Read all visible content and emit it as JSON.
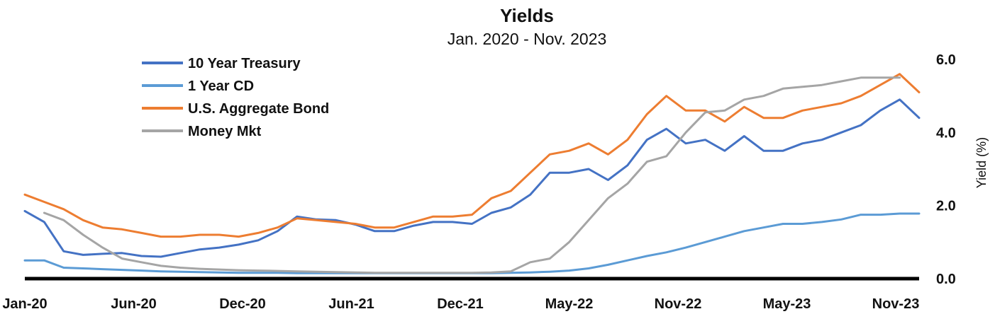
{
  "chart_data": {
    "type": "line",
    "title": "Yields",
    "subtitle": "Jan. 2020 - Nov. 2023",
    "xlabel": "",
    "ylabel": "Yield (%)",
    "ylim": [
      0,
      6
    ],
    "y_ticks": [
      0,
      2,
      4,
      6
    ],
    "y_tick_labels": [
      "0.0",
      "2.0",
      "4.0",
      "6.0"
    ],
    "y_axis_side": "right",
    "grid": false,
    "legend_position": "top-left",
    "x_tick_labels": [
      "Jan-20",
      "Jun-20",
      "Dec-20",
      "Jun-21",
      "Dec-21",
      "May-22",
      "Nov-22",
      "May-23",
      "Nov-23"
    ],
    "x": [
      "2020-01",
      "2020-02",
      "2020-03",
      "2020-04",
      "2020-05",
      "2020-06",
      "2020-07",
      "2020-08",
      "2020-09",
      "2020-10",
      "2020-11",
      "2020-12",
      "2021-01",
      "2021-02",
      "2021-03",
      "2021-04",
      "2021-05",
      "2021-06",
      "2021-07",
      "2021-08",
      "2021-09",
      "2021-10",
      "2021-11",
      "2021-12",
      "2022-01",
      "2022-02",
      "2022-03",
      "2022-04",
      "2022-05",
      "2022-06",
      "2022-07",
      "2022-08",
      "2022-09",
      "2022-10",
      "2022-11",
      "2022-12",
      "2023-01",
      "2023-02",
      "2023-03",
      "2023-04",
      "2023-05",
      "2023-06",
      "2023-07",
      "2023-08",
      "2023-09",
      "2023-10",
      "2023-11"
    ],
    "series": [
      {
        "name": "10 Year Treasury",
        "color": "#4472C4",
        "values": [
          1.85,
          1.55,
          0.75,
          0.65,
          0.68,
          0.7,
          0.62,
          0.6,
          0.7,
          0.8,
          0.85,
          0.93,
          1.05,
          1.3,
          1.7,
          1.62,
          1.6,
          1.48,
          1.3,
          1.3,
          1.45,
          1.55,
          1.55,
          1.5,
          1.8,
          1.95,
          2.3,
          2.9,
          2.9,
          3.0,
          2.7,
          3.1,
          3.8,
          4.1,
          3.7,
          3.8,
          3.5,
          3.9,
          3.5,
          3.5,
          3.7,
          3.8,
          4.0,
          4.2,
          4.6,
          4.9,
          4.4
        ]
      },
      {
        "name": "1 Year CD",
        "color": "#5B9BD5",
        "values": [
          0.5,
          0.5,
          0.3,
          0.28,
          0.26,
          0.24,
          0.22,
          0.2,
          0.19,
          0.18,
          0.17,
          0.16,
          0.16,
          0.16,
          0.15,
          0.15,
          0.15,
          0.15,
          0.15,
          0.15,
          0.15,
          0.15,
          0.15,
          0.15,
          0.15,
          0.16,
          0.17,
          0.19,
          0.22,
          0.28,
          0.38,
          0.5,
          0.62,
          0.72,
          0.85,
          1.0,
          1.15,
          1.3,
          1.4,
          1.5,
          1.5,
          1.55,
          1.62,
          1.75,
          1.75,
          1.78,
          1.78
        ]
      },
      {
        "name": "U.S. Aggregate Bond",
        "color": "#ED7D31",
        "values": [
          2.3,
          2.1,
          1.9,
          1.6,
          1.4,
          1.35,
          1.25,
          1.15,
          1.15,
          1.2,
          1.2,
          1.15,
          1.25,
          1.4,
          1.65,
          1.6,
          1.55,
          1.5,
          1.4,
          1.4,
          1.55,
          1.7,
          1.7,
          1.75,
          2.2,
          2.4,
          2.9,
          3.4,
          3.5,
          3.7,
          3.4,
          3.8,
          4.5,
          5.0,
          4.6,
          4.6,
          4.3,
          4.7,
          4.4,
          4.4,
          4.6,
          4.7,
          4.8,
          5.0,
          5.3,
          5.6,
          5.1
        ]
      },
      {
        "name": "Money Mkt",
        "color": "#A5A5A5",
        "values": [
          null,
          1.8,
          1.6,
          1.2,
          0.85,
          0.55,
          0.45,
          0.35,
          0.3,
          0.27,
          0.25,
          0.23,
          0.22,
          0.21,
          0.2,
          0.19,
          0.18,
          0.17,
          0.16,
          0.16,
          0.16,
          0.16,
          0.16,
          0.16,
          0.17,
          0.2,
          0.45,
          0.55,
          1.0,
          1.6,
          2.2,
          2.6,
          3.2,
          3.35,
          4.0,
          4.55,
          4.6,
          4.9,
          5.0,
          5.2,
          5.25,
          5.3,
          5.4,
          5.5,
          5.5,
          5.5,
          null
        ]
      }
    ]
  }
}
